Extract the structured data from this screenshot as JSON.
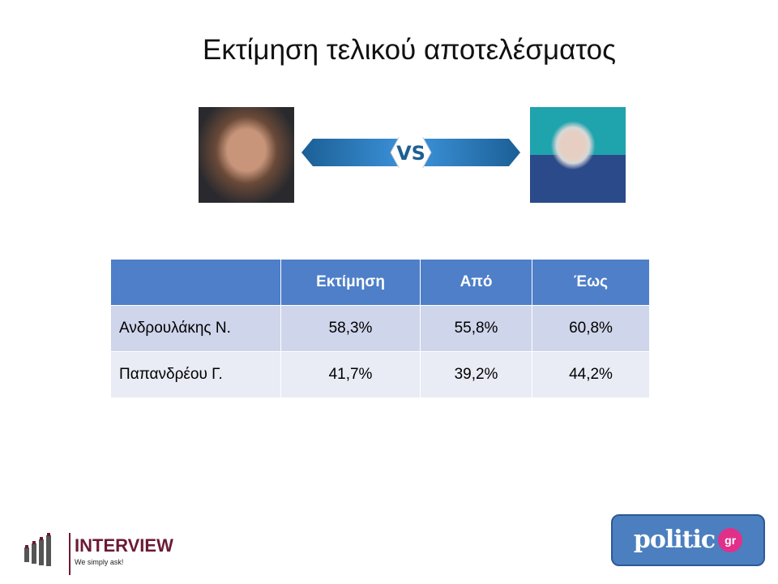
{
  "title": "Εκτίμηση τελικού αποτελέσματος",
  "versus_label": "VS",
  "table": {
    "headers": [
      "",
      "Εκτίμηση",
      "Από",
      "Έως"
    ],
    "rows": [
      [
        "Ανδρουλάκης Ν.",
        "58,3%",
        "55,8%",
        "60,8%"
      ],
      [
        "Παπανδρέου Γ.",
        "41,7%",
        "39,2%",
        "44,2%"
      ]
    ]
  },
  "logos": {
    "interview": {
      "name": "INTERVIEW",
      "tagline": "We simply ask!"
    },
    "politic": {
      "name": "politic",
      "suffix": "gr"
    }
  },
  "colors": {
    "header": "#4e7fc8",
    "row1": "#cfd5ea",
    "row2": "#e9ebf5",
    "interview": "#6b1a35",
    "politic": "#4c7fc0"
  }
}
